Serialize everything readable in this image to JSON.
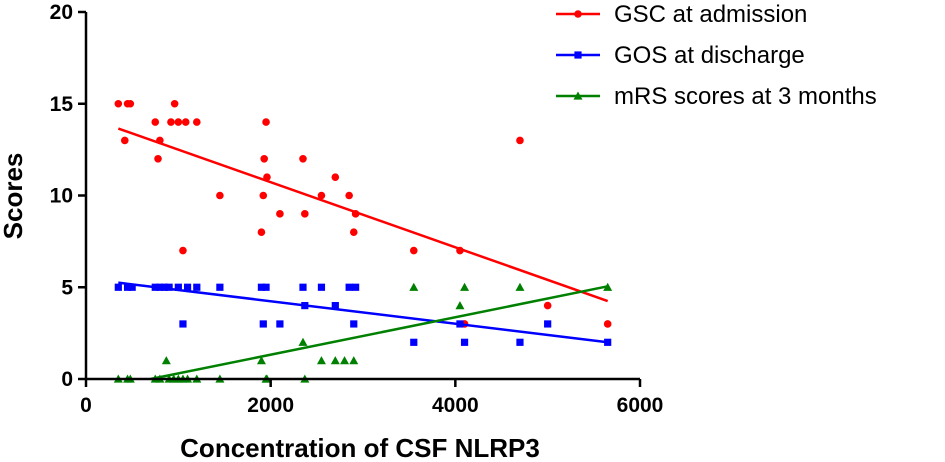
{
  "chart_data": {
    "type": "scatter",
    "title": "",
    "xlabel": "Concentration of CSF NLRP3",
    "ylabel": "Scores",
    "xlim": [
      0,
      6000
    ],
    "ylim": [
      0,
      20
    ],
    "xticks": [
      0,
      2000,
      4000,
      6000
    ],
    "yticks": [
      0,
      5,
      10,
      15,
      20
    ],
    "grid": false,
    "legend_position": "top-right",
    "series": [
      {
        "name": "GSC at admission",
        "color": "#ff0000",
        "marker": "circle",
        "points": [
          [
            350,
            15
          ],
          [
            420,
            13
          ],
          [
            450,
            15
          ],
          [
            480,
            15
          ],
          [
            750,
            14
          ],
          [
            780,
            12
          ],
          [
            800,
            13
          ],
          [
            870,
            5
          ],
          [
            920,
            14
          ],
          [
            960,
            15
          ],
          [
            1000,
            14
          ],
          [
            1050,
            7
          ],
          [
            1080,
            14
          ],
          [
            1200,
            14
          ],
          [
            1450,
            10
          ],
          [
            1900,
            8
          ],
          [
            1920,
            10
          ],
          [
            1930,
            12
          ],
          [
            1950,
            14
          ],
          [
            1960,
            11
          ],
          [
            2100,
            9
          ],
          [
            2350,
            12
          ],
          [
            2370,
            9
          ],
          [
            2550,
            10
          ],
          [
            2700,
            11
          ],
          [
            2850,
            10
          ],
          [
            2900,
            8
          ],
          [
            2920,
            9
          ],
          [
            3550,
            7
          ],
          [
            4050,
            7
          ],
          [
            4100,
            3
          ],
          [
            4700,
            13
          ],
          [
            5000,
            4
          ],
          [
            5650,
            3
          ]
        ],
        "trend": [
          [
            350,
            13.65
          ],
          [
            5650,
            4.25
          ]
        ]
      },
      {
        "name": "GOS at discharge",
        "color": "#0000ff",
        "marker": "square",
        "points": [
          [
            350,
            5
          ],
          [
            450,
            5
          ],
          [
            500,
            5
          ],
          [
            750,
            5
          ],
          [
            800,
            5
          ],
          [
            850,
            5
          ],
          [
            900,
            5
          ],
          [
            1000,
            5
          ],
          [
            1050,
            3
          ],
          [
            1100,
            5
          ],
          [
            1200,
            5
          ],
          [
            1450,
            5
          ],
          [
            1900,
            5
          ],
          [
            1920,
            3
          ],
          [
            1950,
            5
          ],
          [
            2100,
            3
          ],
          [
            2350,
            5
          ],
          [
            2370,
            4
          ],
          [
            2550,
            5
          ],
          [
            2700,
            4
          ],
          [
            2850,
            5
          ],
          [
            2900,
            3
          ],
          [
            2920,
            5
          ],
          [
            3550,
            2
          ],
          [
            4050,
            3
          ],
          [
            4100,
            2
          ],
          [
            4700,
            2
          ],
          [
            5000,
            3
          ],
          [
            5650,
            2
          ]
        ],
        "trend": [
          [
            350,
            5.25
          ],
          [
            5650,
            2.0
          ]
        ]
      },
      {
        "name": "mRS scores at 3 months",
        "color": "#008000",
        "marker": "triangle",
        "points": [
          [
            350,
            0
          ],
          [
            450,
            0
          ],
          [
            480,
            0
          ],
          [
            750,
            0
          ],
          [
            800,
            0
          ],
          [
            870,
            1
          ],
          [
            900,
            0
          ],
          [
            950,
            0
          ],
          [
            1000,
            0
          ],
          [
            1050,
            0
          ],
          [
            1100,
            0
          ],
          [
            1200,
            0
          ],
          [
            1450,
            0
          ],
          [
            1900,
            1
          ],
          [
            1950,
            0
          ],
          [
            1960,
            0
          ],
          [
            2350,
            2
          ],
          [
            2370,
            0
          ],
          [
            2550,
            1
          ],
          [
            2700,
            1
          ],
          [
            2800,
            1
          ],
          [
            2900,
            1
          ],
          [
            3550,
            5
          ],
          [
            4050,
            4
          ],
          [
            4100,
            5
          ],
          [
            4700,
            5
          ],
          [
            5650,
            5
          ]
        ],
        "trend": [
          [
            700,
            0.0
          ],
          [
            5650,
            5.05
          ]
        ]
      }
    ]
  }
}
